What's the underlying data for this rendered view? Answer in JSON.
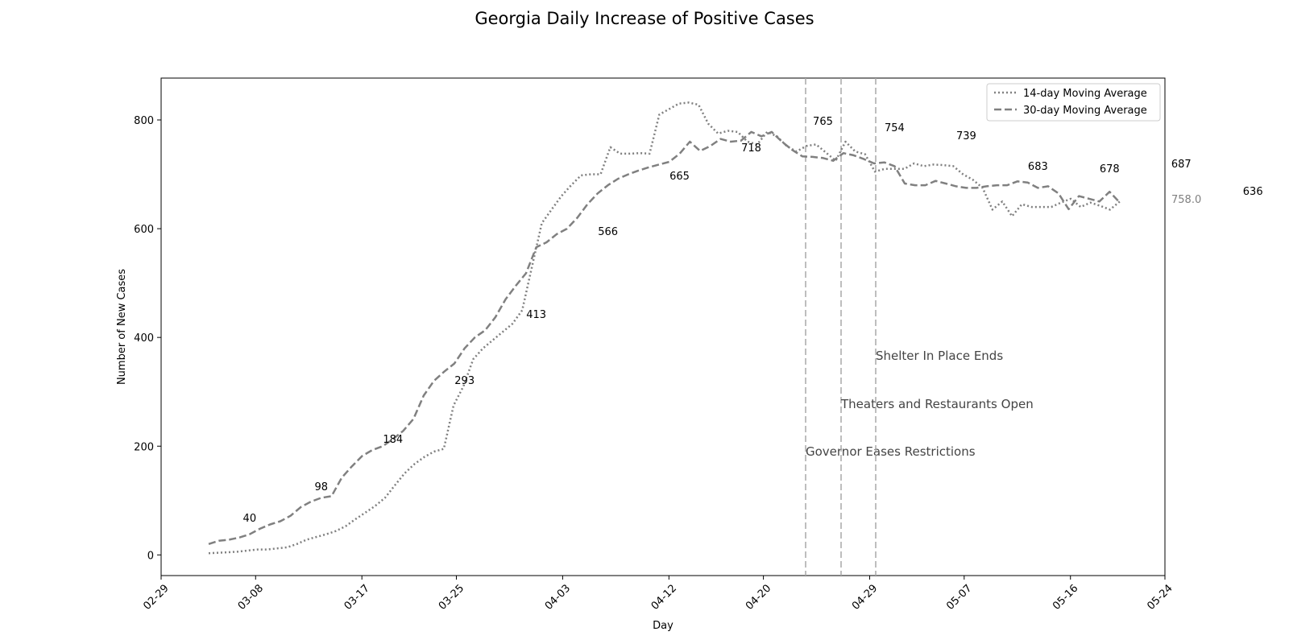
{
  "chart_data": {
    "type": "line",
    "title": "Georgia Daily Increase of Positive Cases",
    "xlabel": "Day",
    "ylabel": "Number of New Cases",
    "x_start_date": "2020-03-04",
    "xlim": [
      "02-29",
      "05-24"
    ],
    "ylim": [
      -38,
      877
    ],
    "x_ticks": [
      "02-29",
      "03-08",
      "03-17",
      "03-25",
      "04-03",
      "04-12",
      "04-20",
      "04-29",
      "05-07",
      "05-16",
      "05-24"
    ],
    "y_ticks": [
      0,
      200,
      400,
      600,
      800
    ],
    "legend_position": "top-right",
    "series": [
      {
        "name": "14-day Moving Average",
        "style": "dotted",
        "color": "#808080",
        "values": [
          3,
          4,
          5,
          6,
          8,
          10,
          10,
          12,
          14,
          20,
          28,
          33,
          38,
          44,
          53,
          66,
          78,
          90,
          105,
          128,
          150,
          167,
          180,
          190,
          195,
          275,
          310,
          360,
          380,
          395,
          410,
          425,
          450,
          530,
          610,
          635,
          660,
          680,
          698,
          700,
          700,
          750,
          738,
          738,
          739,
          738,
          810,
          820,
          830,
          832,
          828,
          793,
          775,
          780,
          778,
          760,
          755,
          778,
          770,
          752,
          742,
          752,
          755,
          740,
          725,
          760,
          742,
          737,
          705,
          710,
          710,
          710,
          720,
          715,
          718,
          717,
          715,
          700,
          690,
          675,
          635,
          650,
          623,
          645,
          640,
          640,
          640,
          648,
          655,
          640,
          648,
          642,
          635,
          650
        ]
      },
      {
        "name": "30-day Moving Average",
        "style": "dashed",
        "color": "#808080",
        "values": [
          20,
          26,
          28,
          32,
          38,
          48,
          56,
          62,
          72,
          88,
          98,
          105,
          108,
          142,
          163,
          182,
          193,
          200,
          213,
          228,
          250,
          293,
          320,
          337,
          352,
          380,
          400,
          413,
          437,
          470,
          495,
          518,
          566,
          575,
          590,
          600,
          620,
          645,
          665,
          680,
          692,
          700,
          707,
          713,
          718,
          723,
          738,
          760,
          743,
          752,
          765,
          760,
          762,
          778,
          770,
          778,
          760,
          745,
          733,
          732,
          730,
          725,
          739,
          735,
          728,
          720,
          722,
          715,
          683,
          680,
          680,
          688,
          683,
          678,
          675,
          675,
          678,
          680,
          680,
          687,
          685,
          675,
          678,
          665,
          636,
          660,
          655,
          650,
          668,
          648
        ]
      }
    ],
    "data_labels": [
      {
        "day": 7,
        "text": "40"
      },
      {
        "day": 14,
        "text": "98"
      },
      {
        "day": 21,
        "text": "184"
      },
      {
        "day": 28,
        "text": "293"
      },
      {
        "day": 35,
        "text": "413"
      },
      {
        "day": 42,
        "text": "566"
      },
      {
        "day": 49,
        "text": "665"
      },
      {
        "day": 56,
        "text": "718"
      },
      {
        "day": 63,
        "text": "765"
      },
      {
        "day": 70,
        "text": "754"
      },
      {
        "day": 77,
        "text": "739"
      },
      {
        "day": 84,
        "text": "683"
      },
      {
        "day": 91,
        "text": "678"
      },
      {
        "day": 98,
        "text": "687"
      },
      {
        "day": 105,
        "text": "636"
      }
    ],
    "event_lines": [
      {
        "day": 76,
        "label": "Governor Eases Restrictions"
      },
      {
        "day": 80.5,
        "label": "Theaters and Restaurants Open"
      },
      {
        "day": 84.5,
        "label": "Shelter In Place Ends"
      }
    ],
    "side_value": "758.0"
  }
}
